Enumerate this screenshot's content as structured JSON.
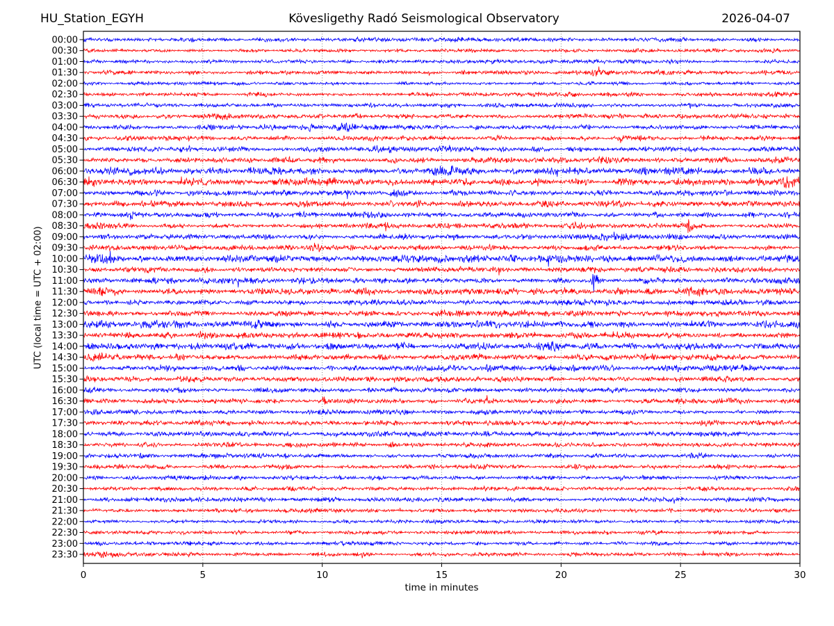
{
  "header": {
    "station": "HU_Station_EGYH",
    "observatory": "Kövesligethy Radó Seismological Observatory",
    "date": "2026-04-07"
  },
  "chart_data": {
    "type": "line",
    "subtype": "helicorder-seismogram",
    "station": "HU_Station_EGYH",
    "title": "Kövesligethy Radó Seismological Observatory",
    "date": "2026-04-07",
    "xlabel": "time in minutes",
    "ylabel": "UTC (local time = UTC + 02:00)",
    "xlim": [
      0,
      30
    ],
    "xticks": [
      0,
      5,
      10,
      15,
      20,
      25,
      30
    ],
    "minutes_per_line": 30,
    "grid": "vertical dotted lines at 5-minute intervals",
    "legend": "none",
    "colors": {
      "blue": "#0000ff",
      "red": "#ff0000",
      "frame": "#000000",
      "grid": "#777777",
      "text": "#000000",
      "background": "#ffffff"
    },
    "traces": [
      {
        "label": "00:00",
        "color": "blue",
        "amp": 1.5,
        "events": []
      },
      {
        "label": "00:30",
        "color": "red",
        "amp": 1.25,
        "events": []
      },
      {
        "label": "01:00",
        "color": "blue",
        "amp": 1.25,
        "events": []
      },
      {
        "label": "01:30",
        "color": "red",
        "amp": 1.4,
        "events": [
          [
            21.6,
            1.2,
            0.5
          ],
          [
            24.2,
            1.0,
            0.4
          ]
        ]
      },
      {
        "label": "02:00",
        "color": "blue",
        "amp": 1.15,
        "events": []
      },
      {
        "label": "02:30",
        "color": "red",
        "amp": 1.4,
        "events": []
      },
      {
        "label": "03:00",
        "color": "blue",
        "amp": 1.5,
        "events": []
      },
      {
        "label": "03:30",
        "color": "red",
        "amp": 1.6,
        "events": [
          [
            5.6,
            1.0,
            0.4
          ]
        ]
      },
      {
        "label": "04:00",
        "color": "blue",
        "amp": 1.6,
        "events": [
          [
            9.3,
            1.0,
            0.5
          ],
          [
            11.0,
            1.2,
            0.6
          ]
        ]
      },
      {
        "label": "04:30",
        "color": "red",
        "amp": 1.6,
        "events": []
      },
      {
        "label": "05:00",
        "color": "blue",
        "amp": 1.7,
        "events": [
          [
            12.6,
            1.3,
            0.7
          ],
          [
            15.2,
            0.9,
            0.5
          ]
        ]
      },
      {
        "label": "05:30",
        "color": "red",
        "amp": 1.9,
        "events": [
          [
            21.7,
            1.0,
            0.5
          ]
        ]
      },
      {
        "label": "06:00",
        "color": "blue",
        "amp": 2.4,
        "events": [
          [
            15.3,
            0.9,
            0.8
          ],
          [
            24.8,
            0.7,
            0.6
          ]
        ]
      },
      {
        "label": "06:30",
        "color": "red",
        "amp": 2.4,
        "events": [
          [
            0.4,
            1.0,
            0.5
          ],
          [
            29.5,
            1.2,
            0.4
          ]
        ]
      },
      {
        "label": "07:00",
        "color": "blue",
        "amp": 1.8,
        "events": [
          [
            11.1,
            1.6,
            0.15
          ],
          [
            13.3,
            0.8,
            0.4
          ]
        ]
      },
      {
        "label": "07:30",
        "color": "red",
        "amp": 2.2,
        "events": []
      },
      {
        "label": "08:00",
        "color": "blue",
        "amp": 1.9,
        "events": [
          [
            2.0,
            0.8,
            0.5
          ]
        ]
      },
      {
        "label": "08:30",
        "color": "red",
        "amp": 1.9,
        "events": [
          [
            12.7,
            1.6,
            0.12
          ],
          [
            25.3,
            1.5,
            0.15
          ]
        ]
      },
      {
        "label": "09:00",
        "color": "blue",
        "amp": 1.8,
        "events": [
          [
            21.7,
            1.0,
            0.8
          ]
        ]
      },
      {
        "label": "09:30",
        "color": "red",
        "amp": 1.9,
        "events": [
          [
            9.7,
            1.1,
            0.3
          ]
        ]
      },
      {
        "label": "10:00",
        "color": "blue",
        "amp": 2.4,
        "events": [
          [
            0.9,
            1.2,
            0.5
          ]
        ]
      },
      {
        "label": "10:30",
        "color": "red",
        "amp": 2.0,
        "events": []
      },
      {
        "label": "11:00",
        "color": "blue",
        "amp": 1.9,
        "events": [
          [
            21.4,
            4.5,
            0.1
          ],
          [
            28.8,
            0.9,
            0.4
          ]
        ]
      },
      {
        "label": "11:30",
        "color": "red",
        "amp": 2.1,
        "events": [
          [
            0.8,
            1.0,
            0.6
          ],
          [
            25.6,
            0.8,
            0.4
          ]
        ]
      },
      {
        "label": "12:00",
        "color": "blue",
        "amp": 1.8,
        "events": [
          [
            21.5,
            0.9,
            0.5
          ]
        ]
      },
      {
        "label": "12:30",
        "color": "red",
        "amp": 2.0,
        "events": []
      },
      {
        "label": "13:00",
        "color": "blue",
        "amp": 2.4,
        "events": []
      },
      {
        "label": "13:30",
        "color": "red",
        "amp": 2.1,
        "events": []
      },
      {
        "label": "14:00",
        "color": "blue",
        "amp": 2.3,
        "events": [
          [
            19.8,
            1.1,
            0.5
          ]
        ]
      },
      {
        "label": "14:30",
        "color": "red",
        "amp": 2.1,
        "events": [
          [
            0.5,
            1.1,
            0.5
          ]
        ]
      },
      {
        "label": "15:00",
        "color": "blue",
        "amp": 2.0,
        "events": []
      },
      {
        "label": "15:30",
        "color": "red",
        "amp": 1.8,
        "events": []
      },
      {
        "label": "16:00",
        "color": "blue",
        "amp": 1.7,
        "events": []
      },
      {
        "label": "16:30",
        "color": "red",
        "amp": 1.7,
        "events": [
          [
            10.1,
            1.8,
            0.12
          ]
        ]
      },
      {
        "label": "17:00",
        "color": "blue",
        "amp": 1.6,
        "events": []
      },
      {
        "label": "17:30",
        "color": "red",
        "amp": 1.7,
        "events": []
      },
      {
        "label": "18:00",
        "color": "blue",
        "amp": 1.7,
        "events": []
      },
      {
        "label": "18:30",
        "color": "red",
        "amp": 1.6,
        "events": [
          [
            12.9,
            1.9,
            0.1
          ]
        ]
      },
      {
        "label": "19:00",
        "color": "blue",
        "amp": 1.5,
        "events": [
          [
            25.6,
            0.8,
            0.5
          ]
        ]
      },
      {
        "label": "19:30",
        "color": "red",
        "amp": 1.5,
        "events": [
          [
            5.8,
            0.8,
            0.4
          ]
        ]
      },
      {
        "label": "20:00",
        "color": "blue",
        "amp": 1.45,
        "events": []
      },
      {
        "label": "20:30",
        "color": "red",
        "amp": 1.45,
        "events": []
      },
      {
        "label": "21:00",
        "color": "blue",
        "amp": 1.5,
        "events": []
      },
      {
        "label": "21:30",
        "color": "red",
        "amp": 1.35,
        "events": []
      },
      {
        "label": "22:00",
        "color": "blue",
        "amp": 1.25,
        "events": []
      },
      {
        "label": "22:30",
        "color": "red",
        "amp": 1.35,
        "events": []
      },
      {
        "label": "23:00",
        "color": "blue",
        "amp": 1.25,
        "events": [
          [
            12.3,
            0.9,
            0.3
          ]
        ]
      },
      {
        "label": "23:30",
        "color": "red",
        "amp": 1.35,
        "events": [
          [
            1.0,
            1.1,
            0.6
          ]
        ]
      }
    ]
  }
}
